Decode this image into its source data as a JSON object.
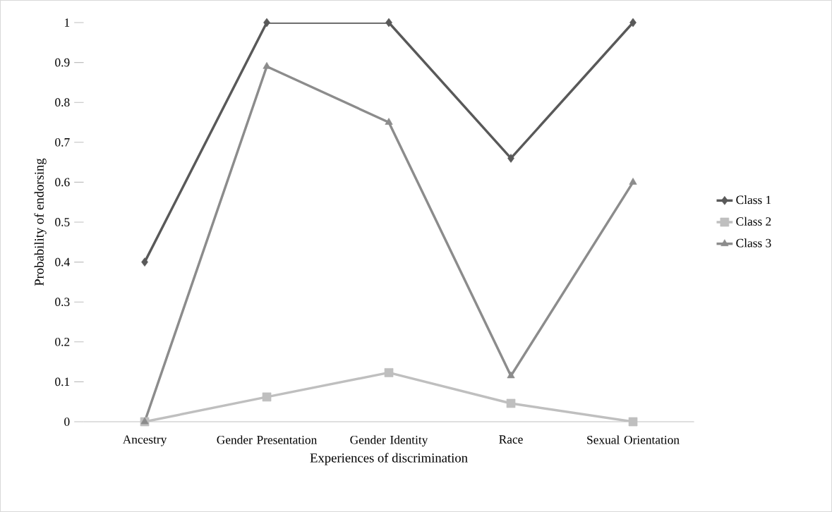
{
  "chart_data": {
    "type": "line",
    "xlabel": "Experiences of discrimination",
    "ylabel": "Probability of endorsing",
    "categories": [
      "Ancestry",
      "Gender Presentation",
      "Gender Identity",
      "Race",
      "Sexual Orientation"
    ],
    "series": [
      {
        "name": "Class 1",
        "color": "#595959",
        "marker": "diamond",
        "values": [
          0.4,
          1,
          1,
          0.66,
          1
        ]
      },
      {
        "name": "Class 2",
        "color": "#bfbfbf",
        "marker": "square",
        "values": [
          0,
          0.062,
          0.123,
          0.046,
          0
        ]
      },
      {
        "name": "Class 3",
        "color": "#8c8c8c",
        "marker": "triangle",
        "values": [
          0,
          0.89,
          0.75,
          0.115,
          0.6
        ]
      }
    ],
    "ylim": [
      0,
      1
    ],
    "yticks": [
      0,
      0.1,
      0.2,
      0.3,
      0.4,
      0.5,
      0.6,
      0.7,
      0.8,
      0.9,
      1
    ],
    "grid": false,
    "legend": "right",
    "line_style": "solid"
  }
}
